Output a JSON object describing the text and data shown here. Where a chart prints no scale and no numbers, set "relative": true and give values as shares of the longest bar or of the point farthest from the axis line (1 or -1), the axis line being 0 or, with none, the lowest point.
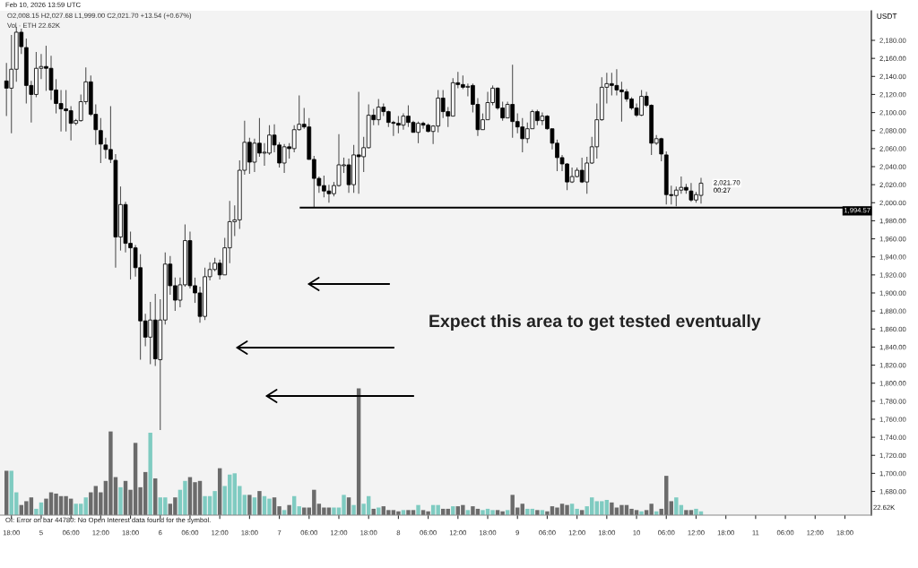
{
  "chart_data": [
    {
      "type": "candlestick",
      "subtitle": "O2,008.15 H2,027.68 L1,999.00 C2,021.70 +13.54 (+0.67%)",
      "ylabel": "USDT",
      "annotations": [
        "Feb 10, 2026 13:59 UTC",
        "Expect this area to get tested eventually",
        "OI: Error on bar 44780: No Open Interest data found for the symbol.",
        {
          "text": "2,021.70",
          "x": "2026-02-10T13:00",
          "y": 2021.7
        },
        "00:27"
      ],
      "ref_lines": [
        {
          "axis": "y",
          "value": 1994.57,
          "label": "1,994.57",
          "color": "#000000"
        }
      ],
      "tick_labels": "y",
      "xlim": [
        "2026-02-04T15:42",
        "2026-02-11T23:20"
      ],
      "ylim": [
        1653.7,
        2212.8
      ],
      "yticks": [
        {
          "value": 1680,
          "label": "1,680.00"
        },
        {
          "value": 1700,
          "label": "1,700.00"
        },
        {
          "value": 1720,
          "label": "1,720.00"
        },
        {
          "value": 1740,
          "label": "1,740.00"
        },
        {
          "value": 1760,
          "label": "1,760.00"
        },
        {
          "value": 1780,
          "label": "1,780.00"
        },
        {
          "value": 1800,
          "label": "1,800.00"
        },
        {
          "value": 1820,
          "label": "1,820.00"
        },
        {
          "value": 1840,
          "label": "1,840.00"
        },
        {
          "value": 1860,
          "label": "1,860.00"
        },
        {
          "value": 1880,
          "label": "1,880.00"
        },
        {
          "value": 1900,
          "label": "1,900.00"
        },
        {
          "value": 1920,
          "label": "1,920.00"
        },
        {
          "value": 1940,
          "label": "1,940.00"
        },
        {
          "value": 1960,
          "label": "1,960.00"
        },
        {
          "value": 1980,
          "label": "1,980.00"
        },
        {
          "value": 2000,
          "label": "2,000.00"
        },
        {
          "value": 2020,
          "label": "2,020.00"
        },
        {
          "value": 2040,
          "label": "2,040.00"
        },
        {
          "value": 2060,
          "label": "2,060.00"
        },
        {
          "value": 2080,
          "label": "2,080.00"
        },
        {
          "value": 2100,
          "label": "2,100.00"
        },
        {
          "value": 2120,
          "label": "2,120.00"
        },
        {
          "value": 2140,
          "label": "2,140.00"
        },
        {
          "value": 2160,
          "label": "2,160.00"
        },
        {
          "value": 2180,
          "label": "2,180.00"
        }
      ],
      "x": [
        "2026-02-04T17:00",
        "2026-02-04T18:00",
        "2026-02-04T19:00",
        "2026-02-04T20:00",
        "2026-02-04T21:00",
        "2026-02-04T22:00",
        "2026-02-04T23:00",
        "2026-02-05T00:00",
        "2026-02-05T01:00",
        "2026-02-05T02:00",
        "2026-02-05T03:00",
        "2026-02-05T04:00",
        "2026-02-05T05:00",
        "2026-02-05T06:00",
        "2026-02-05T07:00",
        "2026-02-05T08:00",
        "2026-02-05T09:00",
        "2026-02-05T10:00",
        "2026-02-05T11:00",
        "2026-02-05T12:00",
        "2026-02-05T13:00",
        "2026-02-05T14:00",
        "2026-02-05T15:00",
        "2026-02-05T16:00",
        "2026-02-05T17:00",
        "2026-02-05T18:00",
        "2026-02-05T19:00",
        "2026-02-05T20:00",
        "2026-02-05T21:00",
        "2026-02-05T22:00",
        "2026-02-05T23:00",
        "2026-02-06T00:00",
        "2026-02-06T01:00",
        "2026-02-06T02:00",
        "2026-02-06T03:00",
        "2026-02-06T04:00",
        "2026-02-06T05:00",
        "2026-02-06T06:00",
        "2026-02-06T07:00",
        "2026-02-06T08:00",
        "2026-02-06T09:00",
        "2026-02-06T10:00",
        "2026-02-06T11:00",
        "2026-02-06T12:00",
        "2026-02-06T13:00",
        "2026-02-06T14:00",
        "2026-02-06T15:00",
        "2026-02-06T16:00",
        "2026-02-06T17:00",
        "2026-02-06T18:00",
        "2026-02-06T19:00",
        "2026-02-06T20:00",
        "2026-02-06T21:00",
        "2026-02-06T22:00",
        "2026-02-06T23:00",
        "2026-02-07T00:00",
        "2026-02-07T01:00",
        "2026-02-07T02:00",
        "2026-02-07T03:00",
        "2026-02-07T04:00",
        "2026-02-07T05:00",
        "2026-02-07T06:00",
        "2026-02-07T07:00",
        "2026-02-07T08:00",
        "2026-02-07T09:00",
        "2026-02-07T10:00",
        "2026-02-07T11:00",
        "2026-02-07T12:00",
        "2026-02-07T13:00",
        "2026-02-07T14:00",
        "2026-02-07T15:00",
        "2026-02-07T16:00",
        "2026-02-07T17:00",
        "2026-02-07T18:00",
        "2026-02-07T19:00",
        "2026-02-07T20:00",
        "2026-02-07T21:00",
        "2026-02-07T22:00",
        "2026-02-07T23:00",
        "2026-02-08T00:00",
        "2026-02-08T01:00",
        "2026-02-08T02:00",
        "2026-02-08T03:00",
        "2026-02-08T04:00",
        "2026-02-08T05:00",
        "2026-02-08T06:00",
        "2026-02-08T07:00",
        "2026-02-08T08:00",
        "2026-02-08T09:00",
        "2026-02-08T10:00",
        "2026-02-08T11:00",
        "2026-02-08T12:00",
        "2026-02-08T13:00",
        "2026-02-08T14:00",
        "2026-02-08T15:00",
        "2026-02-08T16:00",
        "2026-02-08T17:00",
        "2026-02-08T18:00",
        "2026-02-08T19:00",
        "2026-02-08T20:00",
        "2026-02-08T21:00",
        "2026-02-08T22:00",
        "2026-02-08T23:00",
        "2026-02-09T00:00",
        "2026-02-09T01:00",
        "2026-02-09T02:00",
        "2026-02-09T03:00",
        "2026-02-09T04:00",
        "2026-02-09T05:00",
        "2026-02-09T06:00",
        "2026-02-09T07:00",
        "2026-02-09T08:00",
        "2026-02-09T09:00",
        "2026-02-09T10:00",
        "2026-02-09T11:00",
        "2026-02-09T12:00",
        "2026-02-09T13:00",
        "2026-02-09T14:00",
        "2026-02-09T15:00",
        "2026-02-09T16:00",
        "2026-02-09T17:00",
        "2026-02-09T18:00",
        "2026-02-09T19:00",
        "2026-02-09T20:00",
        "2026-02-09T21:00",
        "2026-02-09T22:00",
        "2026-02-09T23:00",
        "2026-02-10T00:00",
        "2026-02-10T01:00",
        "2026-02-10T02:00",
        "2026-02-10T03:00",
        "2026-02-10T04:00",
        "2026-02-10T05:00",
        "2026-02-10T06:00",
        "2026-02-10T07:00",
        "2026-02-10T08:00",
        "2026-02-10T09:00",
        "2026-02-10T10:00",
        "2026-02-10T11:00",
        "2026-02-10T12:00",
        "2026-02-10T13:00"
      ],
      "ohlc": [
        [
          2135,
          2155,
          2096,
          2127
        ],
        [
          2127,
          2186,
          2077,
          2148
        ],
        [
          2148,
          2195,
          2134,
          2189
        ],
        [
          2189,
          2193,
          2165,
          2173
        ],
        [
          2172,
          2182,
          2110,
          2130
        ],
        [
          2130,
          2135,
          2089,
          2120
        ],
        [
          2120,
          2167,
          2117,
          2149
        ],
        [
          2149,
          2165,
          2137,
          2151
        ],
        [
          2151,
          2174,
          2124,
          2149
        ],
        [
          2149,
          2163,
          2114,
          2125
        ],
        [
          2125,
          2137,
          2099,
          2110
        ],
        [
          2110,
          2125,
          2079,
          2104
        ],
        [
          2104,
          2125,
          2079,
          2102
        ],
        [
          2102,
          2107,
          2069,
          2088
        ],
        [
          2088,
          2093,
          2086,
          2091
        ],
        [
          2091,
          2120,
          2090,
          2112
        ],
        [
          2112,
          2150,
          2109,
          2134
        ],
        [
          2134,
          2141,
          2096,
          2098
        ],
        [
          2098,
          2109,
          2064,
          2081
        ],
        [
          2080,
          2094,
          2044,
          2065
        ],
        [
          2064,
          2072,
          2049,
          2059
        ],
        [
          2059,
          2107,
          2044,
          2048
        ],
        [
          2047,
          2054,
          1928,
          1962
        ],
        [
          1962,
          2018,
          1947,
          1998
        ],
        [
          1998,
          2001,
          1945,
          1955
        ],
        [
          1955,
          1968,
          1915,
          1950
        ],
        [
          1950,
          1953,
          1918,
          1928
        ],
        [
          1928,
          1943,
          1826,
          1869
        ],
        [
          1869,
          1877,
          1841,
          1851
        ],
        [
          1851,
          1890,
          1821,
          1870
        ],
        [
          1870,
          1899,
          1819,
          1827
        ],
        [
          1826,
          1893,
          1748,
          1870
        ],
        [
          1870,
          1945,
          1865,
          1932
        ],
        [
          1932,
          1941,
          1898,
          1908
        ],
        [
          1908,
          1917,
          1880,
          1892
        ],
        [
          1892,
          1917,
          1884,
          1909
        ],
        [
          1909,
          1976,
          1907,
          1958
        ],
        [
          1958,
          1968,
          1905,
          1908
        ],
        [
          1908,
          1917,
          1889,
          1900
        ],
        [
          1900,
          1907,
          1867,
          1874
        ],
        [
          1874,
          1928,
          1870,
          1918
        ],
        [
          1918,
          1934,
          1914,
          1926
        ],
        [
          1926,
          1939,
          1924,
          1933
        ],
        [
          1933,
          1937,
          1915,
          1920
        ],
        [
          1920,
          1961,
          1920,
          1950
        ],
        [
          1950,
          2002,
          1933,
          1979
        ],
        [
          1979,
          1997,
          1963,
          1981
        ],
        [
          1981,
          2047,
          1971,
          2036
        ],
        [
          2036,
          2091,
          2031,
          2067
        ],
        [
          2067,
          2072,
          2032,
          2045
        ],
        [
          2045,
          2071,
          2034,
          2066
        ],
        [
          2066,
          2094,
          2051,
          2055
        ],
        [
          2055,
          2066,
          2041,
          2056
        ],
        [
          2055,
          2086,
          2053,
          2075
        ],
        [
          2075,
          2087,
          2056,
          2064
        ],
        [
          2064,
          2067,
          2039,
          2044
        ],
        [
          2044,
          2065,
          2033,
          2062
        ],
        [
          2062,
          2066,
          2049,
          2060
        ],
        [
          2060,
          2086,
          2056,
          2081
        ],
        [
          2081,
          2119,
          2080,
          2087
        ],
        [
          2087,
          2105,
          2082,
          2084
        ],
        [
          2084,
          2094,
          2048,
          2048
        ],
        [
          2048,
          2052,
          1995,
          2027
        ],
        [
          2027,
          2029,
          2011,
          2019
        ],
        [
          2019,
          2030,
          2006,
          2013
        ],
        [
          2013,
          2020,
          2000,
          2010
        ],
        [
          2010,
          2023,
          2007,
          2019
        ],
        [
          2019,
          2076,
          2018,
          2042
        ],
        [
          2041,
          2050,
          2033,
          2042
        ],
        [
          2042,
          2049,
          2011,
          2020
        ],
        [
          2020,
          2064,
          2011,
          2053
        ],
        [
          2053,
          2123,
          2010,
          2051
        ],
        [
          2051,
          2073,
          2034,
          2061
        ],
        [
          2061,
          2109,
          2060,
          2097
        ],
        [
          2097,
          2104,
          2086,
          2092
        ],
        [
          2092,
          2115,
          2086,
          2106
        ],
        [
          2106,
          2110,
          2096,
          2101
        ],
        [
          2101,
          2102,
          2084,
          2089
        ],
        [
          2089,
          2091,
          2074,
          2088
        ],
        [
          2088,
          2096,
          2077,
          2086
        ],
        [
          2086,
          2099,
          2081,
          2096
        ],
        [
          2096,
          2108,
          2084,
          2089
        ],
        [
          2089,
          2091,
          2078,
          2078
        ],
        [
          2078,
          2090,
          2066,
          2088
        ],
        [
          2088,
          2090,
          2082,
          2086
        ],
        [
          2086,
          2088,
          2078,
          2079
        ],
        [
          2079,
          2086,
          2065,
          2085
        ],
        [
          2085,
          2125,
          2078,
          2116
        ],
        [
          2116,
          2125,
          2094,
          2101
        ],
        [
          2101,
          2106,
          2084,
          2096
        ],
        [
          2096,
          2138,
          2096,
          2133
        ],
        [
          2133,
          2145,
          2127,
          2131
        ],
        [
          2131,
          2141,
          2126,
          2128
        ],
        [
          2128,
          2132,
          2118,
          2129
        ],
        [
          2130,
          2132,
          2100,
          2109
        ],
        [
          2109,
          2116,
          2074,
          2081
        ],
        [
          2081,
          2099,
          2081,
          2092
        ],
        [
          2092,
          2123,
          2092,
          2111
        ],
        [
          2111,
          2130,
          2108,
          2127
        ],
        [
          2127,
          2128,
          2103,
          2105
        ],
        [
          2105,
          2112,
          2091,
          2094
        ],
        [
          2094,
          2112,
          2094,
          2109
        ],
        [
          2109,
          2153,
          2072,
          2090
        ],
        [
          2090,
          2099,
          2077,
          2084
        ],
        [
          2084,
          2094,
          2056,
          2071
        ],
        [
          2071,
          2089,
          2066,
          2082
        ],
        [
          2082,
          2103,
          2082,
          2101
        ],
        [
          2101,
          2103,
          2086,
          2091
        ],
        [
          2091,
          2100,
          2086,
          2096
        ],
        [
          2096,
          2097,
          2081,
          2082
        ],
        [
          2082,
          2082,
          2059,
          2066
        ],
        [
          2066,
          2070,
          2035,
          2050
        ],
        [
          2050,
          2053,
          2035,
          2043
        ],
        [
          2043,
          2044,
          2014,
          2023
        ],
        [
          2023,
          2039,
          2022,
          2029
        ],
        [
          2029,
          2039,
          2028,
          2036
        ],
        [
          2036,
          2050,
          2022,
          2023
        ],
        [
          2023,
          2051,
          2010,
          2044
        ],
        [
          2044,
          2073,
          2043,
          2062
        ],
        [
          2062,
          2110,
          2049,
          2092
        ],
        [
          2092,
          2139,
          2091,
          2128
        ],
        [
          2128,
          2144,
          2110,
          2132
        ],
        [
          2132,
          2144,
          2119,
          2130
        ],
        [
          2130,
          2148,
          2119,
          2125
        ],
        [
          2125,
          2134,
          2090,
          2123
        ],
        [
          2123,
          2126,
          2112,
          2115
        ],
        [
          2115,
          2117,
          2103,
          2105
        ],
        [
          2105,
          2110,
          2095,
          2097
        ],
        [
          2097,
          2125,
          2096,
          2118
        ],
        [
          2118,
          2123,
          2106,
          2108
        ],
        [
          2108,
          2109,
          2053,
          2066
        ],
        [
          2066,
          2075,
          2064,
          2071
        ],
        [
          2071,
          2072,
          2046,
          2054
        ],
        [
          2053,
          2057,
          1998,
          2009
        ],
        [
          2009,
          2019,
          1998,
          2008
        ],
        [
          2008,
          2018,
          1996,
          2014
        ],
        [
          2014,
          2029,
          2010,
          2017
        ],
        [
          2017,
          2021,
          2010,
          2014
        ],
        [
          2013,
          2022,
          2001,
          2003
        ],
        [
          2003,
          2012,
          2000,
          2009
        ],
        [
          2008.15,
          2027.68,
          1999.0,
          2021.7
        ]
      ]
    },
    {
      "type": "bar",
      "relative": true,
      "title": "Vol · ETH 22.62K",
      "annotations": [
        "22.62K"
      ],
      "tick_labels": "x",
      "xlim": [
        "2026-02-04T15:42",
        "2026-02-11T23:20"
      ],
      "xticks": [
        {
          "value": "2026-02-04T18:00",
          "label": "18:00"
        },
        {
          "value": "2026-02-05T00:00",
          "label": "5"
        },
        {
          "value": "2026-02-05T06:00",
          "label": "06:00"
        },
        {
          "value": "2026-02-05T12:00",
          "label": "12:00"
        },
        {
          "value": "2026-02-05T18:00",
          "label": "18:00"
        },
        {
          "value": "2026-02-06T00:00",
          "label": "6"
        },
        {
          "value": "2026-02-06T06:00",
          "label": "06:00"
        },
        {
          "value": "2026-02-06T12:00",
          "label": "12:00"
        },
        {
          "value": "2026-02-06T18:00",
          "label": "18:00"
        },
        {
          "value": "2026-02-07T00:00",
          "label": "7"
        },
        {
          "value": "2026-02-07T06:00",
          "label": "06:00"
        },
        {
          "value": "2026-02-07T12:00",
          "label": "12:00"
        },
        {
          "value": "2026-02-07T18:00",
          "label": "18:00"
        },
        {
          "value": "2026-02-08T00:00",
          "label": "8"
        },
        {
          "value": "2026-02-08T06:00",
          "label": "06:00"
        },
        {
          "value": "2026-02-08T12:00",
          "label": "12:00"
        },
        {
          "value": "2026-02-08T18:00",
          "label": "18:00"
        },
        {
          "value": "2026-02-09T00:00",
          "label": "9"
        },
        {
          "value": "2026-02-09T06:00",
          "label": "06:00"
        },
        {
          "value": "2026-02-09T12:00",
          "label": "12:00"
        },
        {
          "value": "2026-02-09T18:00",
          "label": "18:00"
        },
        {
          "value": "2026-02-10T00:00",
          "label": "10"
        },
        {
          "value": "2026-02-10T06:00",
          "label": "06:00"
        },
        {
          "value": "2026-02-10T12:00",
          "label": "12:00"
        },
        {
          "value": "2026-02-10T18:00",
          "label": "18:00"
        },
        {
          "value": "2026-02-11T00:00",
          "label": "11"
        },
        {
          "value": "2026-02-11T06:00",
          "label": "06:00"
        },
        {
          "value": "2026-02-11T12:00",
          "label": "12:00"
        },
        {
          "value": "2026-02-11T18:00",
          "label": "18:00"
        }
      ],
      "x": [
        "2026-02-04T17:00",
        "2026-02-04T18:00",
        "2026-02-04T19:00",
        "2026-02-04T20:00",
        "2026-02-04T21:00",
        "2026-02-04T22:00",
        "2026-02-04T23:00",
        "2026-02-05T00:00",
        "2026-02-05T01:00",
        "2026-02-05T02:00",
        "2026-02-05T03:00",
        "2026-02-05T04:00",
        "2026-02-05T05:00",
        "2026-02-05T06:00",
        "2026-02-05T07:00",
        "2026-02-05T08:00",
        "2026-02-05T09:00",
        "2026-02-05T10:00",
        "2026-02-05T11:00",
        "2026-02-05T12:00",
        "2026-02-05T13:00",
        "2026-02-05T14:00",
        "2026-02-05T15:00",
        "2026-02-05T16:00",
        "2026-02-05T17:00",
        "2026-02-05T18:00",
        "2026-02-05T19:00",
        "2026-02-05T20:00",
        "2026-02-05T21:00",
        "2026-02-05T22:00",
        "2026-02-05T23:00",
        "2026-02-06T00:00",
        "2026-02-06T01:00",
        "2026-02-06T02:00",
        "2026-02-06T03:00",
        "2026-02-06T04:00",
        "2026-02-06T05:00",
        "2026-02-06T06:00",
        "2026-02-06T07:00",
        "2026-02-06T08:00",
        "2026-02-06T09:00",
        "2026-02-06T10:00",
        "2026-02-06T11:00",
        "2026-02-06T12:00",
        "2026-02-06T13:00",
        "2026-02-06T14:00",
        "2026-02-06T15:00",
        "2026-02-06T16:00",
        "2026-02-06T17:00",
        "2026-02-06T18:00",
        "2026-02-06T19:00",
        "2026-02-06T20:00",
        "2026-02-06T21:00",
        "2026-02-06T22:00",
        "2026-02-06T23:00",
        "2026-02-07T00:00",
        "2026-02-07T01:00",
        "2026-02-07T02:00",
        "2026-02-07T03:00",
        "2026-02-07T04:00",
        "2026-02-07T05:00",
        "2026-02-07T06:00",
        "2026-02-07T07:00",
        "2026-02-07T08:00",
        "2026-02-07T09:00",
        "2026-02-07T10:00",
        "2026-02-07T11:00",
        "2026-02-07T12:00",
        "2026-02-07T13:00",
        "2026-02-07T14:00",
        "2026-02-07T15:00",
        "2026-02-07T16:00",
        "2026-02-07T17:00",
        "2026-02-07T18:00",
        "2026-02-07T19:00",
        "2026-02-07T20:00",
        "2026-02-07T21:00",
        "2026-02-07T22:00",
        "2026-02-07T23:00",
        "2026-02-08T00:00",
        "2026-02-08T01:00",
        "2026-02-08T02:00",
        "2026-02-08T03:00",
        "2026-02-08T04:00",
        "2026-02-08T05:00",
        "2026-02-08T06:00",
        "2026-02-08T07:00",
        "2026-02-08T08:00",
        "2026-02-08T09:00",
        "2026-02-08T10:00",
        "2026-02-08T11:00",
        "2026-02-08T12:00",
        "2026-02-08T13:00",
        "2026-02-08T14:00",
        "2026-02-08T15:00",
        "2026-02-08T16:00",
        "2026-02-08T17:00",
        "2026-02-08T18:00",
        "2026-02-08T19:00",
        "2026-02-08T20:00",
        "2026-02-08T21:00",
        "2026-02-08T22:00",
        "2026-02-08T23:00",
        "2026-02-09T00:00",
        "2026-02-09T01:00",
        "2026-02-09T02:00",
        "2026-02-09T03:00",
        "2026-02-09T04:00",
        "2026-02-09T05:00",
        "2026-02-09T06:00",
        "2026-02-09T07:00",
        "2026-02-09T08:00",
        "2026-02-09T09:00",
        "2026-02-09T10:00",
        "2026-02-09T11:00",
        "2026-02-09T12:00",
        "2026-02-09T13:00",
        "2026-02-09T14:00",
        "2026-02-09T15:00",
        "2026-02-09T16:00",
        "2026-02-09T17:00",
        "2026-02-09T18:00",
        "2026-02-09T19:00",
        "2026-02-09T20:00",
        "2026-02-09T21:00",
        "2026-02-09T22:00",
        "2026-02-09T23:00",
        "2026-02-10T00:00",
        "2026-02-10T01:00",
        "2026-02-10T02:00",
        "2026-02-10T03:00",
        "2026-02-10T04:00",
        "2026-02-10T05:00",
        "2026-02-10T06:00",
        "2026-02-10T07:00",
        "2026-02-10T08:00",
        "2026-02-10T09:00",
        "2026-02-10T10:00",
        "2026-02-10T11:00",
        "2026-02-10T12:00",
        "2026-02-10T13:00"
      ],
      "values": [
        0.35,
        0.35,
        0.18,
        0.08,
        0.11,
        0.14,
        0.05,
        0.1,
        0.13,
        0.18,
        0.17,
        0.15,
        0.15,
        0.13,
        0.09,
        0.09,
        0.14,
        0.18,
        0.23,
        0.18,
        0.27,
        0.66,
        0.3,
        0.22,
        0.27,
        0.2,
        0.57,
        0.22,
        0.34,
        0.65,
        0.29,
        0.14,
        0.14,
        0.09,
        0.14,
        0.2,
        0.27,
        0.3,
        0.26,
        0.27,
        0.15,
        0.15,
        0.19,
        0.37,
        0.23,
        0.32,
        0.33,
        0.23,
        0.16,
        0.16,
        0.14,
        0.19,
        0.15,
        0.13,
        0.14,
        0.07,
        0.04,
        0.08,
        0.15,
        0.07,
        0.06,
        0.06,
        0.2,
        0.09,
        0.06,
        0.06,
        0.06,
        0.06,
        0.16,
        0.14,
        0.08,
        1.0,
        0.09,
        0.15,
        0.05,
        0.06,
        0.07,
        0.04,
        0.04,
        0.03,
        0.04,
        0.04,
        0.04,
        0.08,
        0.04,
        0.03,
        0.08,
        0.08,
        0.05,
        0.05,
        0.07,
        0.07,
        0.08,
        0.04,
        0.07,
        0.05,
        0.04,
        0.05,
        0.04,
        0.04,
        0.03,
        0.04,
        0.16,
        0.06,
        0.09,
        0.05,
        0.05,
        0.04,
        0.04,
        0.03,
        0.07,
        0.06,
        0.09,
        0.08,
        0.09,
        0.05,
        0.04,
        0.07,
        0.14,
        0.11,
        0.11,
        0.12,
        0.1,
        0.06,
        0.08,
        0.08,
        0.05,
        0.04,
        0.03,
        0.04,
        0.09,
        0.03,
        0.05,
        0.31,
        0.11,
        0.14,
        0.08,
        0.04,
        0.04,
        0.05,
        0.03
      ],
      "legend": false
    }
  ]
}
